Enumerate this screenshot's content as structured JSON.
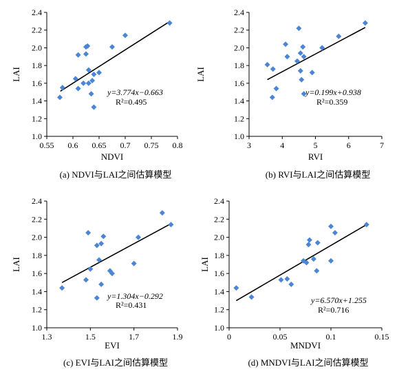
{
  "chart_data": [
    {
      "type": "scatter",
      "caption": "(a) NDVI与LAI之间估算模型",
      "xlabel": "NDVI",
      "ylabel": "LAI",
      "xlim": [
        0.55,
        0.8
      ],
      "ylim": [
        1.0,
        2.4
      ],
      "xticks": [
        "0.55",
        "0.6",
        "0.65",
        "0.7",
        "0.75",
        "0.8"
      ],
      "yticks": [
        "1.0",
        "1.2",
        "1.4",
        "1.6",
        "1.8",
        "2.0",
        "2.2",
        "2.4"
      ],
      "equation": "y=3.774x−0.663",
      "r2": "R²=0.495",
      "points_x": [
        0.575,
        0.58,
        0.605,
        0.61,
        0.61,
        0.62,
        0.625,
        0.625,
        0.628,
        0.63,
        0.63,
        0.635,
        0.637,
        0.64,
        0.64,
        0.65,
        0.675,
        0.7,
        0.785
      ],
      "points_y": [
        1.44,
        1.55,
        1.65,
        1.92,
        1.54,
        1.6,
        1.93,
        2.01,
        2.02,
        1.75,
        1.6,
        1.48,
        1.63,
        1.33,
        1.7,
        1.72,
        2.01,
        2.14,
        2.28
      ],
      "fit_x": [
        0.576,
        0.783
      ],
      "fit_y": [
        1.51,
        2.29
      ],
      "marker_color": "#4a86d4",
      "line_color": "#000000"
    },
    {
      "type": "scatter",
      "caption": "(b) RVI与LAI之间估算模型",
      "xlabel": "RVI",
      "ylabel": "LAI",
      "xlim": [
        3,
        7
      ],
      "ylim": [
        1.0,
        2.4
      ],
      "xticks": [
        "3",
        "4",
        "5",
        "6",
        "7"
      ],
      "yticks": [
        "1.0",
        "1.2",
        "1.4",
        "1.6",
        "1.8",
        "2.0",
        "2.2",
        "2.4"
      ],
      "equation": "y=0.199x+0.938",
      "r2": "R²=0.359",
      "points_x": [
        3.55,
        3.7,
        3.72,
        3.82,
        4.1,
        4.15,
        4.45,
        4.5,
        4.55,
        4.55,
        4.58,
        4.62,
        4.65,
        4.65,
        4.9,
        5.2,
        5.7,
        6.5
      ],
      "points_y": [
        1.81,
        1.44,
        1.76,
        1.54,
        2.04,
        1.9,
        1.85,
        2.22,
        1.94,
        1.74,
        1.64,
        2.01,
        1.48,
        1.9,
        1.72,
        2.0,
        2.13,
        2.28
      ],
      "fit_x": [
        3.55,
        6.5
      ],
      "fit_y": [
        1.64,
        2.23
      ],
      "marker_color": "#4a86d4",
      "line_color": "#000000"
    },
    {
      "type": "scatter",
      "caption": "(c) EVI与LAI之间估算模型",
      "xlabel": "EVI",
      "ylabel": "LAI",
      "xlim": [
        1.3,
        1.9
      ],
      "ylim": [
        1.0,
        2.4
      ],
      "xticks": [
        "1.3",
        "1.5",
        "1.7",
        "1.9"
      ],
      "yticks": [
        "1.0",
        "1.2",
        "1.4",
        "1.6",
        "1.8",
        "2.0",
        "2.2",
        "2.4"
      ],
      "equation": "y=1.304x−0.292",
      "r2": "R²=0.431",
      "points_x": [
        1.37,
        1.48,
        1.49,
        1.5,
        1.53,
        1.53,
        1.54,
        1.55,
        1.55,
        1.56,
        1.59,
        1.6,
        1.7,
        1.72,
        1.83,
        1.87
      ],
      "points_y": [
        1.44,
        1.53,
        2.05,
        1.65,
        1.91,
        1.33,
        1.75,
        1.48,
        1.93,
        2.01,
        1.63,
        1.6,
        1.71,
        2.0,
        2.27,
        2.14
      ],
      "fit_x": [
        1.37,
        1.87
      ],
      "fit_y": [
        1.5,
        2.15
      ],
      "marker_color": "#4a86d4",
      "line_color": "#000000"
    },
    {
      "type": "scatter",
      "caption": "(d) MNDVI与LAI之间估算模型",
      "xlabel": "MNDVI",
      "ylabel": "LAI",
      "xlim": [
        0,
        0.15
      ],
      "ylim": [
        1.0,
        2.4
      ],
      "xticks": [
        "0",
        "0.05",
        "0.1",
        "0.15"
      ],
      "yticks": [
        "1.0",
        "1.2",
        "1.4",
        "1.6",
        "1.8",
        "2.0",
        "2.2",
        "2.4"
      ],
      "equation": "y=6.570x+1.255",
      "r2": "R²=0.716",
      "points_x": [
        0.007,
        0.022,
        0.051,
        0.057,
        0.061,
        0.073,
        0.076,
        0.078,
        0.079,
        0.083,
        0.086,
        0.087,
        0.1,
        0.1,
        0.104,
        0.135
      ],
      "points_y": [
        1.44,
        1.34,
        1.53,
        1.54,
        1.48,
        1.74,
        1.72,
        1.92,
        1.97,
        1.76,
        1.63,
        1.94,
        1.74,
        2.12,
        2.05,
        2.14
      ],
      "fit_x": [
        0.007,
        0.135
      ],
      "fit_y": [
        1.3,
        2.14
      ],
      "marker_color": "#4a86d4",
      "line_color": "#000000"
    }
  ]
}
